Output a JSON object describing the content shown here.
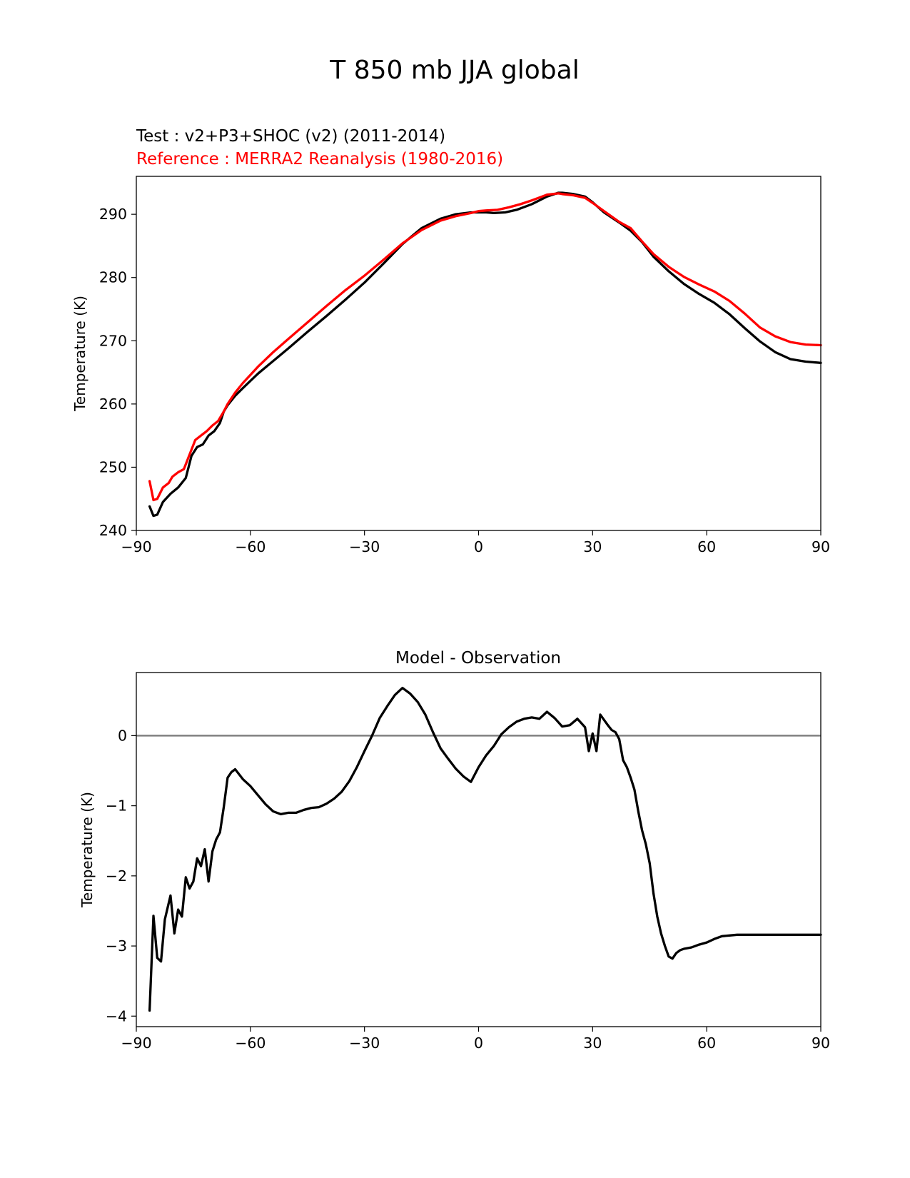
{
  "title": "T 850 mb JJA global",
  "chart_data": [
    {
      "type": "line",
      "test_label": "Test : v2+P3+SHOC (v2) (2011-2014)",
      "reference_label": "Reference : MERRA2 Reanalysis (1980-2016)",
      "xlabel": "",
      "ylabel": "Temperature (K)",
      "xlim": [
        -90,
        90
      ],
      "ylim": [
        240,
        296
      ],
      "xticks": [
        -90,
        -60,
        -30,
        0,
        30,
        60,
        90
      ],
      "xtick_labels": [
        "−90",
        "−60",
        "−30",
        "0",
        "30",
        "60",
        "90"
      ],
      "yticks": [
        240,
        250,
        260,
        270,
        280,
        290
      ],
      "ytick_labels": [
        "240",
        "250",
        "260",
        "270",
        "280",
        "290"
      ],
      "series": [
        {
          "name": "Test",
          "color": "#000000",
          "x": [
            -86.5,
            -85.5,
            -84.5,
            -83,
            -81,
            -79,
            -77,
            -75.5,
            -74,
            -72.5,
            -71,
            -69.5,
            -68,
            -67,
            -66,
            -64,
            -62,
            -58,
            -54,
            -50,
            -45,
            -40,
            -35,
            -30,
            -25,
            -20,
            -15,
            -10,
            -6,
            -2,
            0,
            2,
            4,
            7,
            10,
            14,
            18,
            21,
            22,
            25,
            28,
            30,
            33,
            37,
            40,
            43,
            46,
            50,
            54,
            58,
            62,
            66,
            70,
            74,
            78,
            82,
            86,
            90
          ],
          "y": [
            243.8,
            242.3,
            242.5,
            244.5,
            245.8,
            246.8,
            248.3,
            251.8,
            253.2,
            253.6,
            255.0,
            255.7,
            257.0,
            258.8,
            259.8,
            261.3,
            262.5,
            264.8,
            266.8,
            268.8,
            271.4,
            273.9,
            276.5,
            279.2,
            282.2,
            285.3,
            287.8,
            289.3,
            290.0,
            290.3,
            290.3,
            290.3,
            290.2,
            290.3,
            290.7,
            291.6,
            292.8,
            293.4,
            293.4,
            293.2,
            292.8,
            291.9,
            290.3,
            288.7,
            287.4,
            285.6,
            283.3,
            281.0,
            279.0,
            277.4,
            276.0,
            274.2,
            272.0,
            269.9,
            268.2,
            267.1,
            266.7,
            266.5
          ]
        },
        {
          "name": "Reference",
          "color": "#ff0000",
          "x": [
            -86.5,
            -85.5,
            -84.5,
            -83,
            -81.5,
            -80.5,
            -79,
            -77.5,
            -76,
            -74.5,
            -73,
            -71.5,
            -70,
            -68.5,
            -67,
            -66,
            -64,
            -62,
            -58,
            -54,
            -50,
            -45,
            -40,
            -35,
            -30,
            -25,
            -20,
            -15,
            -10,
            -6,
            -2,
            0,
            2,
            5,
            8,
            11,
            14,
            18,
            21,
            22,
            25,
            28,
            30,
            33,
            37,
            40,
            43,
            46,
            50,
            54,
            58,
            62,
            66,
            70,
            74,
            78,
            82,
            86,
            90
          ],
          "y": [
            247.8,
            244.8,
            245.0,
            246.8,
            247.5,
            248.5,
            249.2,
            249.7,
            252.0,
            254.3,
            255.0,
            255.7,
            256.6,
            257.3,
            258.8,
            260.0,
            261.8,
            263.3,
            265.9,
            268.2,
            270.3,
            272.9,
            275.5,
            278.0,
            280.3,
            282.8,
            285.4,
            287.5,
            289.0,
            289.7,
            290.2,
            290.5,
            290.6,
            290.7,
            291.1,
            291.6,
            292.2,
            293.1,
            293.3,
            293.2,
            293.0,
            292.6,
            291.8,
            290.5,
            288.8,
            287.8,
            285.7,
            283.7,
            281.7,
            280.1,
            278.9,
            277.8,
            276.3,
            274.3,
            272.1,
            270.7,
            269.8,
            269.4,
            269.3
          ]
        }
      ]
    },
    {
      "type": "line",
      "title": "Model - Observation",
      "xlabel": "",
      "ylabel": "Temperature (K)",
      "xlim": [
        -90,
        90
      ],
      "ylim": [
        -4.15,
        0.9
      ],
      "xticks": [
        -90,
        -60,
        -30,
        0,
        30,
        60,
        90
      ],
      "xtick_labels": [
        "−90",
        "−60",
        "−30",
        "0",
        "30",
        "60",
        "90"
      ],
      "yticks": [
        -4,
        -3,
        -2,
        -1,
        0
      ],
      "ytick_labels": [
        "−4",
        "−3",
        "−2",
        "−1",
        "0"
      ],
      "zero_line_color": "#808080",
      "series": [
        {
          "name": "Model - Observation",
          "color": "#000000",
          "x": [
            -86.5,
            -85.5,
            -84.5,
            -83.5,
            -82.5,
            -81,
            -80,
            -79,
            -78,
            -77,
            -76,
            -75,
            -74,
            -73,
            -72,
            -71,
            -70,
            -69,
            -68,
            -67,
            -66,
            -65,
            -64,
            -62,
            -60,
            -58,
            -56,
            -54,
            -52,
            -50,
            -48,
            -46,
            -44,
            -42,
            -40,
            -38,
            -36,
            -34,
            -32,
            -30,
            -28,
            -26,
            -24,
            -22,
            -20,
            -18,
            -16,
            -14,
            -12,
            -10,
            -8,
            -6,
            -4,
            -2,
            0,
            2,
            4,
            6,
            8,
            10,
            12,
            14,
            16,
            18,
            20,
            22,
            24,
            26,
            28,
            29,
            30,
            31,
            32,
            34,
            35,
            36,
            37,
            38,
            39,
            40,
            41,
            42,
            43,
            44,
            45,
            46,
            47,
            48,
            49,
            50,
            51,
            52,
            53,
            54,
            56,
            58,
            60,
            62,
            64,
            66,
            68,
            70,
            72,
            74,
            76,
            78,
            80,
            82,
            84,
            86,
            88,
            90
          ],
          "y": [
            -3.92,
            -2.57,
            -3.17,
            -3.22,
            -2.62,
            -2.28,
            -2.82,
            -2.48,
            -2.58,
            -2.02,
            -2.18,
            -2.08,
            -1.75,
            -1.86,
            -1.62,
            -2.08,
            -1.65,
            -1.48,
            -1.38,
            -1.02,
            -0.6,
            -0.52,
            -0.48,
            -0.62,
            -0.72,
            -0.85,
            -0.98,
            -1.08,
            -1.12,
            -1.1,
            -1.1,
            -1.06,
            -1.03,
            -1.02,
            -0.97,
            -0.9,
            -0.8,
            -0.65,
            -0.45,
            -0.22,
            0.0,
            0.25,
            0.42,
            0.58,
            0.68,
            0.6,
            0.48,
            0.3,
            0.05,
            -0.18,
            -0.33,
            -0.47,
            -0.58,
            -0.66,
            -0.45,
            -0.28,
            -0.15,
            0.02,
            0.12,
            0.2,
            0.24,
            0.26,
            0.24,
            0.34,
            0.25,
            0.13,
            0.15,
            0.24,
            0.12,
            -0.22,
            0.03,
            -0.22,
            0.3,
            0.15,
            0.08,
            0.05,
            -0.05,
            -0.35,
            -0.45,
            -0.6,
            -0.77,
            -1.08,
            -1.35,
            -1.55,
            -1.82,
            -2.25,
            -2.58,
            -2.82,
            -3.0,
            -3.15,
            -3.18,
            -3.1,
            -3.06,
            -3.04,
            -3.02,
            -2.98,
            -2.95,
            -2.9,
            -2.86,
            -2.85,
            -2.84,
            -2.84,
            -2.84,
            -2.84,
            -2.84,
            -2.84,
            -2.84,
            -2.84,
            -2.84,
            -2.84,
            -2.84,
            -2.84
          ]
        }
      ]
    }
  ]
}
